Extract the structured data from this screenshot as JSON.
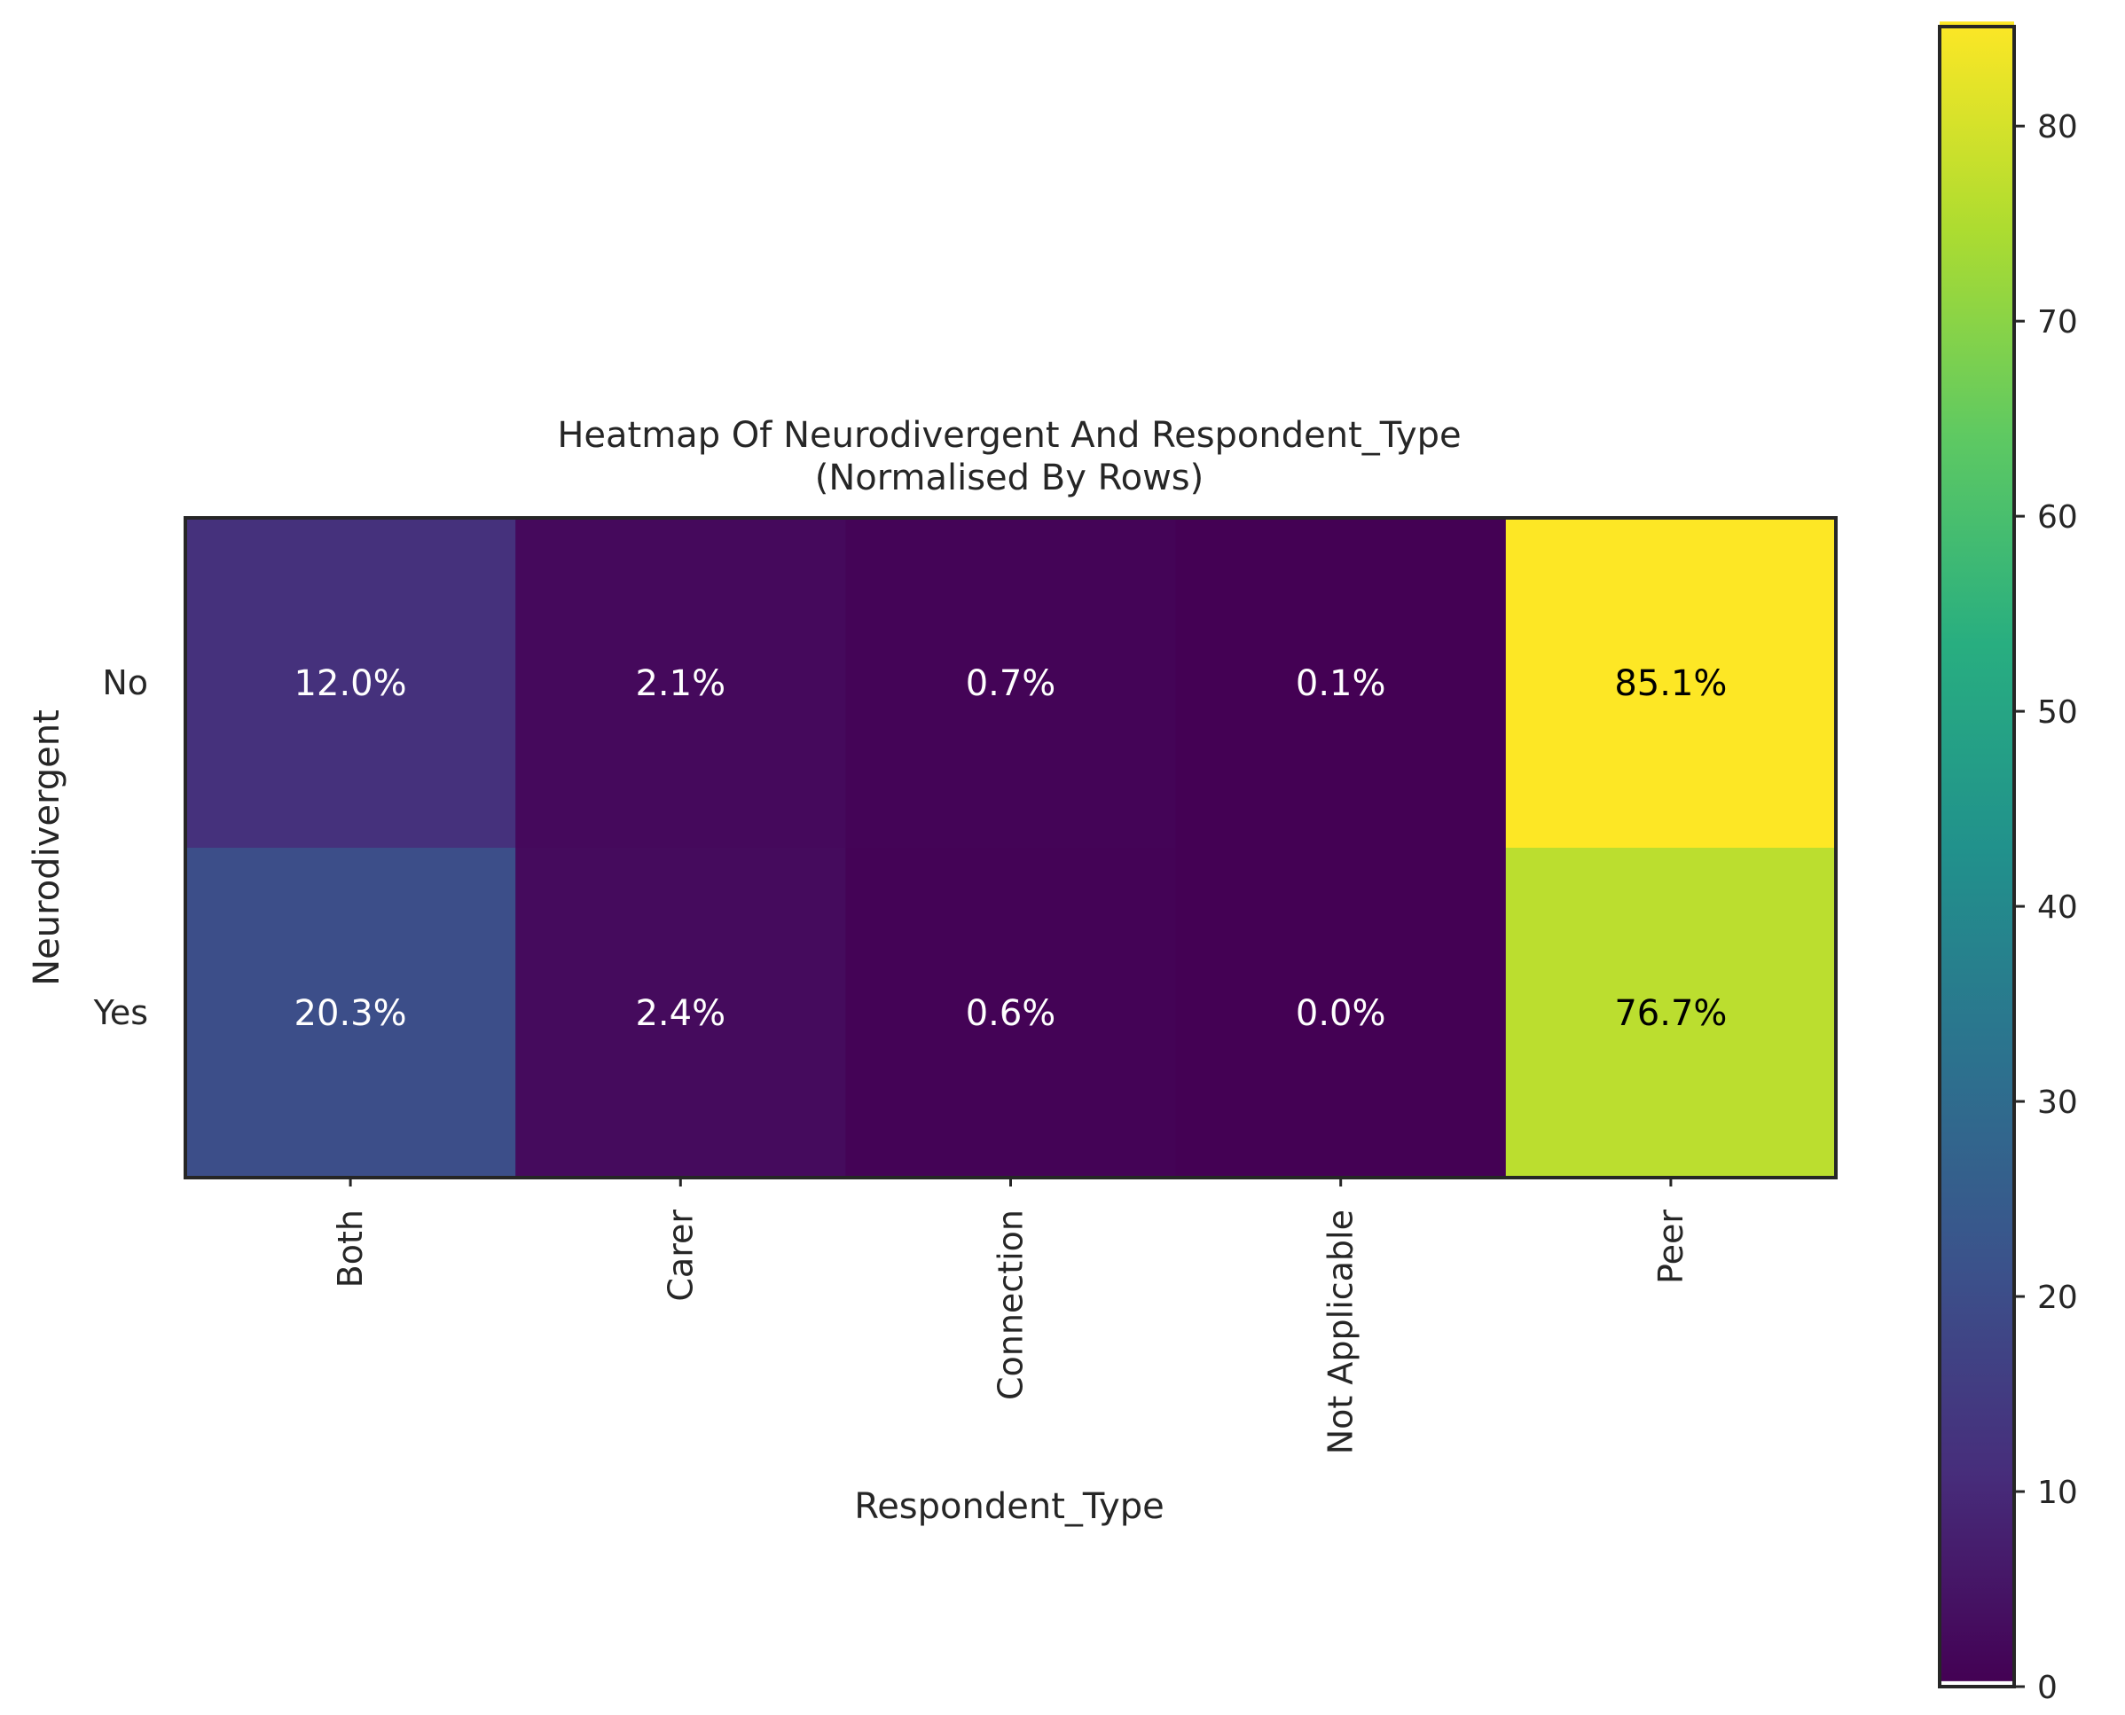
{
  "chart_data": {
    "type": "heatmap",
    "title": "Heatmap Of Neurodivergent And Respondent_Type\n(Normalised By Rows)",
    "xlabel": "Respondent_Type",
    "ylabel": "Neurodivergent",
    "x_categories": [
      "Both",
      "Carer",
      "Connection",
      "Not Applicable",
      "Peer"
    ],
    "y_categories": [
      "No",
      "Yes"
    ],
    "values": [
      [
        12.0,
        2.1,
        0.7,
        0.1,
        85.1
      ],
      [
        20.3,
        2.4,
        0.6,
        0.0,
        76.7
      ]
    ],
    "cell_labels": [
      [
        "12.0%",
        "2.1%",
        "0.7%",
        "0.1%",
        "85.1%"
      ],
      [
        "20.3%",
        "2.4%",
        "0.6%",
        "0.0%",
        "76.7%"
      ]
    ],
    "colormap": "viridis",
    "colorbar": {
      "range": [
        0,
        85.1
      ],
      "ticks": [
        0,
        10,
        20,
        30,
        40,
        50,
        60,
        70,
        80
      ]
    }
  }
}
